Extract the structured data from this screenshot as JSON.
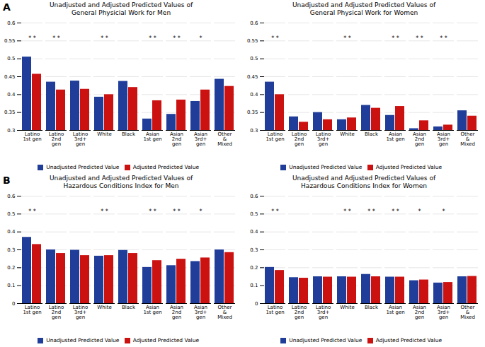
{
  "chart_data": [
    {
      "type": "bar",
      "title": "Unadjusted and Adjusted Predicted Values of",
      "subtitle": "General Physicial Work for Men",
      "categories": [
        "Latino\n1st gen",
        "Latino\n2nd\ngen",
        "Latino\n3rd+\ngen",
        "White",
        "Black",
        "Asian\n1st gen",
        "Asian\n2nd\ngen",
        "Asian\n3rd+\ngen",
        "Other\n&\nMixed"
      ],
      "series": [
        {
          "name": "Unadjusted Predicted Value",
          "color": "#1F3D99",
          "values": [
            0.505,
            0.435,
            0.438,
            0.393,
            0.437,
            0.332,
            0.345,
            0.381,
            0.443
          ]
        },
        {
          "name": "Adjusted Predicted Value",
          "color": "#CC1111",
          "values": [
            0.457,
            0.413,
            0.415,
            0.4,
            0.42,
            0.383,
            0.385,
            0.413,
            0.423
          ]
        }
      ],
      "ylim": [
        0.3,
        0.6
      ],
      "yticks": [
        0.3,
        0.35,
        0.4,
        0.45,
        0.5,
        0.55,
        0.6
      ],
      "grid": true,
      "legend": "bottom",
      "annotations": [
        {
          "text": "A"
        },
        {
          "category": "Latino\n1st gen",
          "text": "* *"
        },
        {
          "category": "Latino\n2nd\ngen",
          "text": "* *"
        },
        {
          "category": "White",
          "text": "* *"
        },
        {
          "category": "Asian\n1st gen",
          "text": "* *"
        },
        {
          "category": "Asian\n2nd\ngen",
          "text": "* *"
        },
        {
          "category": "Asian\n3rd+\ngen",
          "text": "*"
        }
      ]
    },
    {
      "type": "bar",
      "title": "Unadjusted and Adjusted Predicted Values of",
      "subtitle": "General Physical Work for Women",
      "categories": [
        "Latino\n1st gen",
        "Latino\n2nd\ngen",
        "Latino\n3rd+\ngen",
        "White",
        "Black",
        "Asian\n1st gen",
        "Asian\n2nd\ngen",
        "Asian\n3rd+\ngen",
        "Other\n&\nMixed"
      ],
      "series": [
        {
          "name": "Unadjusted Predicted Value",
          "color": "#1F3D99",
          "values": [
            0.435,
            0.338,
            0.35,
            0.33,
            0.37,
            0.342,
            0.305,
            0.31,
            0.355
          ]
        },
        {
          "name": "Adjusted Predicted Value",
          "color": "#CC1111",
          "values": [
            0.4,
            0.323,
            0.33,
            0.335,
            0.362,
            0.367,
            0.327,
            0.315,
            0.34
          ]
        }
      ],
      "ylim": [
        0.3,
        0.6
      ],
      "yticks": [
        0.3,
        0.35,
        0.4,
        0.45,
        0.5,
        0.55,
        0.6
      ],
      "grid": true,
      "legend": "bottom",
      "annotations": [
        {
          "category": "Latino\n1st gen",
          "text": "* *"
        },
        {
          "category": "White",
          "text": "* *"
        },
        {
          "category": "Asian\n1st gen",
          "text": "* *"
        },
        {
          "category": "Asian\n2nd\ngen",
          "text": "* *"
        },
        {
          "category": "Asian\n3rd+\ngen",
          "text": "* *"
        }
      ]
    },
    {
      "type": "bar",
      "title": "Unadjusted and Adjusted Predicted Values of",
      "subtitle": "Hazardous Conditions Index for Men",
      "categories": [
        "Latino\n1st gen",
        "Latino\n2nd\ngen",
        "Latino\n3rd+\ngen",
        "White",
        "Black",
        "Asian\n1st gen",
        "Asian\n2nd\ngen",
        "Asian\n3rd+\ngen",
        "Other\n&\nMixed"
      ],
      "series": [
        {
          "name": "Unadjusted Predicted Value",
          "color": "#1F3D99",
          "values": [
            0.37,
            0.3,
            0.298,
            0.265,
            0.297,
            0.202,
            0.212,
            0.235,
            0.3
          ]
        },
        {
          "name": "Adjusted Predicted Value",
          "color": "#CC1111",
          "values": [
            0.33,
            0.28,
            0.268,
            0.268,
            0.28,
            0.24,
            0.248,
            0.255,
            0.285
          ]
        }
      ],
      "ylim": [
        0,
        0.6
      ],
      "yticks": [
        0,
        0.1,
        0.2,
        0.3,
        0.4,
        0.5,
        0.6
      ],
      "grid": true,
      "legend": "bottom",
      "annotations": [
        {
          "text": "B"
        },
        {
          "category": "Latino\n1st gen",
          "text": "* *"
        },
        {
          "category": "White",
          "text": "* *"
        },
        {
          "category": "Asian\n1st gen",
          "text": "* *"
        },
        {
          "category": "Asian\n2nd\ngen",
          "text": "* *"
        },
        {
          "category": "Asian\n3rd+\ngen",
          "text": "*"
        }
      ]
    },
    {
      "type": "bar",
      "title": "Unadjusted and Adjusted Predicted Values of",
      "subtitle": "Hazardous Conditions Index for Women",
      "categories": [
        "Latino\n1st gen",
        "Latino\n2nd\ngen",
        "Latino\n3rd+\ngen",
        "White",
        "Black",
        "Asian\n1st gen",
        "Asian\n2nd\ngen",
        "Asian\n3rd+\ngen",
        "Other\n&\nMixed"
      ],
      "series": [
        {
          "name": "Unadjusted Predicted Value",
          "color": "#1F3D99",
          "values": [
            0.202,
            0.145,
            0.15,
            0.15,
            0.163,
            0.148,
            0.128,
            0.115,
            0.15
          ]
        },
        {
          "name": "Adjusted Predicted Value",
          "color": "#CC1111",
          "values": [
            0.185,
            0.142,
            0.148,
            0.148,
            0.15,
            0.148,
            0.132,
            0.118,
            0.152
          ]
        }
      ],
      "ylim": [
        0,
        0.6
      ],
      "yticks": [
        0,
        0.1,
        0.2,
        0.3,
        0.4,
        0.5,
        0.6
      ],
      "grid": true,
      "legend": "bottom",
      "annotations": [
        {
          "category": "Latino\n1st gen",
          "text": "* *"
        },
        {
          "category": "White",
          "text": "* *"
        },
        {
          "category": "Black",
          "text": "* *"
        },
        {
          "category": "Asian\n1st gen",
          "text": "* *"
        },
        {
          "category": "Asian\n2nd\ngen",
          "text": "*"
        },
        {
          "category": "Asian\n3rd+\ngen",
          "text": "*"
        }
      ]
    }
  ]
}
